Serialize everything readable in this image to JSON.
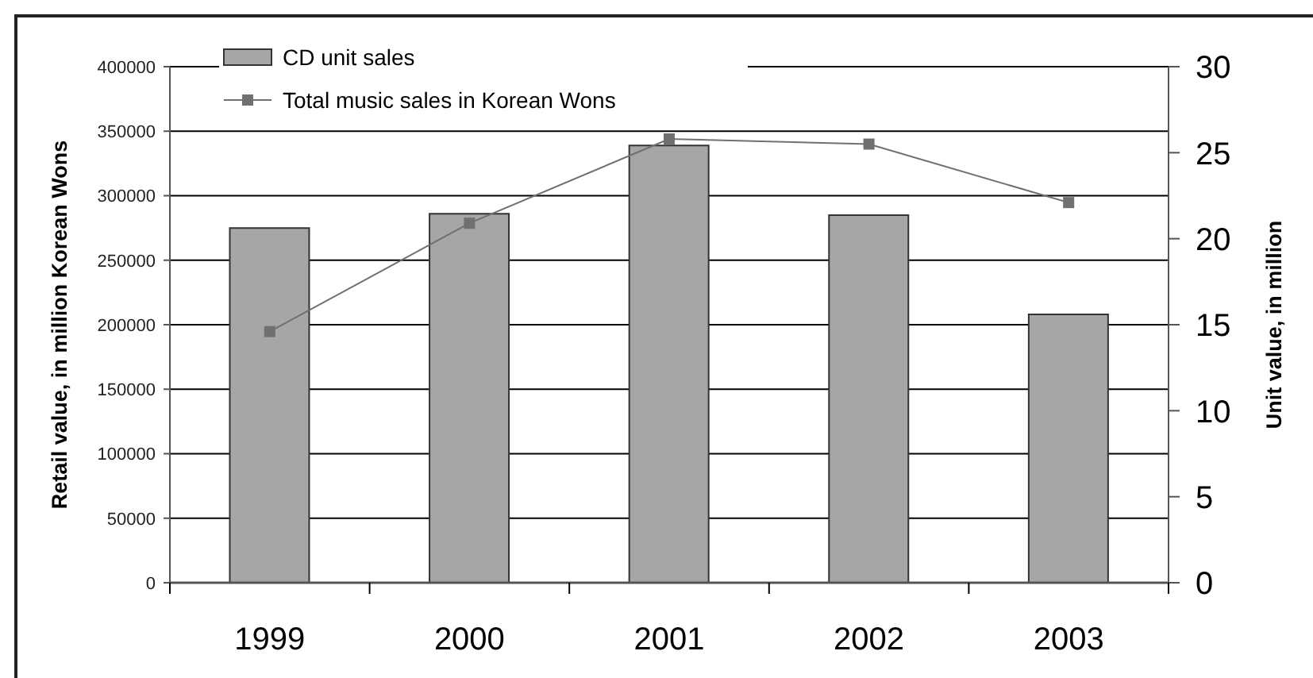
{
  "chart_data": {
    "type": "bar",
    "ylabel": "Retail value, in million Korean Wons",
    "y2label": "Unit value, in million",
    "categories": [
      "1999",
      "2000",
      "2001",
      "2002",
      "2003"
    ],
    "series": [
      {
        "name": "CD unit sales",
        "color": "#a6a6a6",
        "values": [
          275000,
          286000,
          339000,
          285000,
          208000
        ]
      },
      {
        "name": "Total music sales in Korean Wons",
        "type": "line",
        "axis": "y2",
        "color": "#707070",
        "values": [
          14.6,
          20.9,
          25.8,
          25.5,
          22.1
        ]
      }
    ],
    "ylim": [
      0,
      400000
    ],
    "yticks": [
      0,
      50000,
      100000,
      150000,
      200000,
      250000,
      300000,
      350000,
      400000
    ],
    "y2lim": [
      0,
      30
    ],
    "y2ticks": [
      0,
      5,
      10,
      15,
      20,
      25,
      30
    ],
    "grid": "y",
    "legend": "top left",
    "marker": "square",
    "line_style": "solid"
  }
}
